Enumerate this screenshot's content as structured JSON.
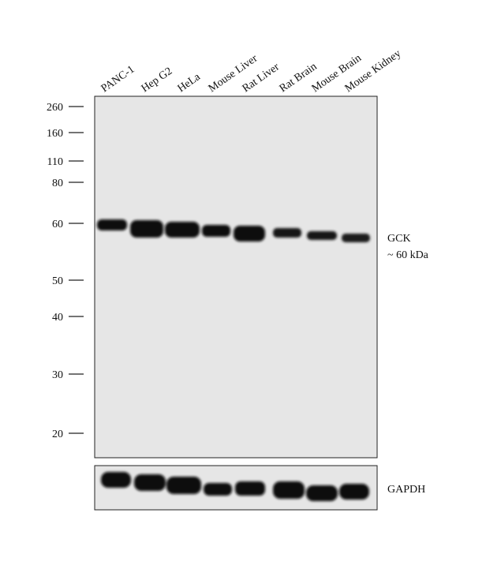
{
  "lanes": [
    "PANC-1",
    "Hep G2",
    "HeLa",
    "Mouse Liver",
    "Rat Liver",
    "Rat Brain",
    "Mouse Brain",
    "Mouse Kidney"
  ],
  "markers": [
    260,
    160,
    110,
    80,
    60,
    50,
    40,
    30,
    20
  ],
  "target": {
    "name": "GCK",
    "size": "~ 60 kDa"
  },
  "loading_control": "GAPDH"
}
